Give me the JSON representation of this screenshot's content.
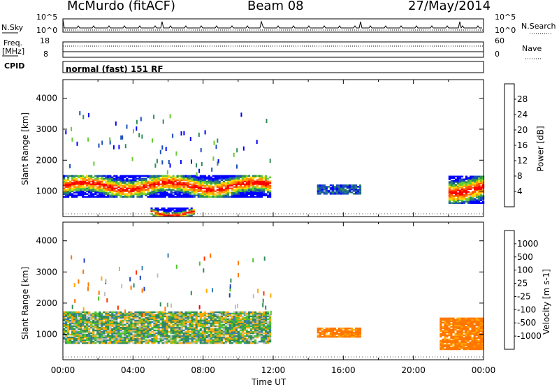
{
  "header": {
    "station": "McMurdo (fitACF)",
    "beam": "Beam 08",
    "date": "27/May/2014"
  },
  "status_panels": {
    "nsky_label": "N.Sky",
    "nsearch_label": "N.Search",
    "noise_tick_top_left": "10^5",
    "noise_tick_bottom_left": "10^0",
    "noise_tick_top_right": "10^5",
    "noise_tick_bottom_right": "10^0",
    "freq_label_line1": "Freq.",
    "freq_label_line2": "[MHz]",
    "freq_tick_top": "18",
    "freq_tick_bottom": "8",
    "nave_label": "Nave",
    "nave_tick_top": "60",
    "nave_tick_bottom": "0",
    "cpid_label": "CPID",
    "cpid_value": "normal (fast) 151 RF"
  },
  "colors": {
    "power_scale": [
      "#0000ff",
      "#1a4fb8",
      "#2e8b57",
      "#66cc33",
      "#ffd700",
      "#ff9900",
      "#ff5500",
      "#ff0000"
    ],
    "velocity_scale": [
      "#1a3fc4",
      "#3a7fb0",
      "#2e8b57",
      "#4fc32a",
      "#bfbfbf",
      "#ffaa00",
      "#ff7700",
      "#ff3300",
      "#ff0000"
    ]
  },
  "chart_data": [
    {
      "type": "heatmap",
      "name_role": "power",
      "ylabel": "Slant Range [km]",
      "xlabel": "Time UT",
      "x_ticks": [
        "00:00",
        "04:00",
        "08:00",
        "12:00",
        "16:00",
        "20:00",
        "00:00"
      ],
      "xlim_hours": [
        0,
        24
      ],
      "y_ticks": [
        1000,
        2000,
        3000,
        4000
      ],
      "ylim": [
        180,
        4600
      ],
      "colorbar": {
        "label": "Power [dB]",
        "ticks": [
          "4",
          "8",
          "12",
          "16",
          "20",
          "24",
          "28"
        ],
        "range": [
          0,
          32
        ]
      },
      "bands": [
        {
          "t_start": 0.0,
          "t_end": 11.8,
          "range_low": 800,
          "range_high": 1500,
          "level": "high"
        },
        {
          "t_start": 22.0,
          "t_end": 24.0,
          "range_low": 600,
          "range_high": 1500,
          "level": "high"
        },
        {
          "t_start": 14.5,
          "t_end": 17.0,
          "range_low": 900,
          "range_high": 1200,
          "level": "low"
        },
        {
          "t_start": 5.0,
          "t_end": 7.5,
          "range_low": 200,
          "range_high": 450,
          "level": "high"
        }
      ]
    },
    {
      "type": "heatmap",
      "name_role": "velocity",
      "ylabel": "Slant Range [km]",
      "xlabel": "Time UT",
      "x_ticks": [
        "00:00",
        "04:00",
        "08:00",
        "12:00",
        "16:00",
        "20:00",
        "00:00"
      ],
      "xlim_hours": [
        0,
        24
      ],
      "y_ticks": [
        1000,
        2000,
        3000,
        4000
      ],
      "ylim": [
        180,
        4600
      ],
      "colorbar": {
        "label": "Velocity [m s-1]",
        "ticks": [
          "1000",
          "500",
          "100",
          "25",
          "-25",
          "-100",
          "-500",
          "-1000"
        ],
        "range": [
          -1500,
          1500
        ]
      },
      "bands": [
        {
          "t_start": 0.0,
          "t_end": 11.8,
          "range_low": 700,
          "range_high": 1700,
          "level": "mixed"
        },
        {
          "t_start": 21.5,
          "t_end": 24.0,
          "range_low": 500,
          "range_high": 1500,
          "level": "negative"
        },
        {
          "t_start": 14.5,
          "t_end": 17.0,
          "range_low": 900,
          "range_high": 1200,
          "level": "negative"
        }
      ]
    }
  ],
  "time_axis_label": "Time UT",
  "time_ticks": [
    "00:00",
    "04:00",
    "08:00",
    "12:00",
    "16:00",
    "20:00",
    "00:00"
  ]
}
